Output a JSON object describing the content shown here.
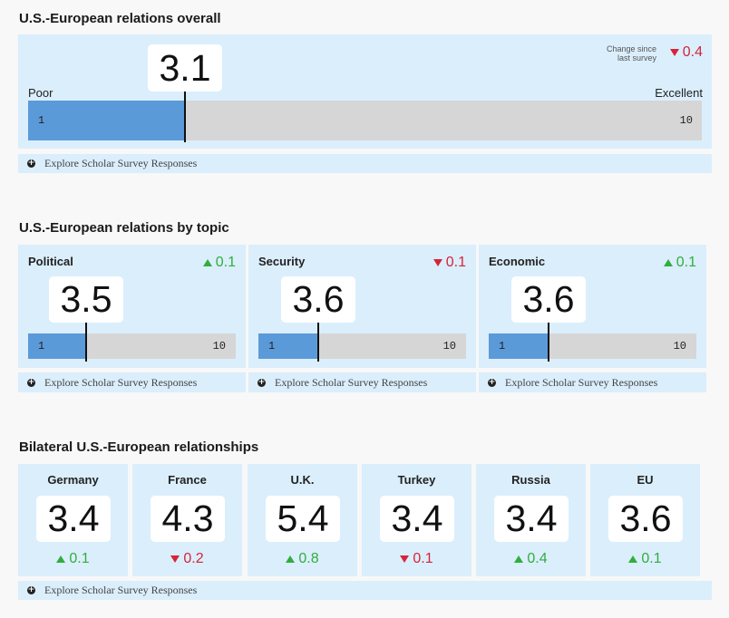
{
  "overall": {
    "title": "U.S.-European relations overall",
    "value": "3.1",
    "score": 3.1,
    "scale_min": 1,
    "scale_max": 10,
    "label_low": "Poor",
    "label_high": "Excellent",
    "min_text": "1",
    "max_text": "10",
    "change_caption_line1": "Change since",
    "change_caption_line2": "last survey",
    "change_value": "0.4",
    "change_dir": "down",
    "explore_label": "Explore Scholar Survey Responses"
  },
  "topics": {
    "title": "U.S.-European relations by topic",
    "items": [
      {
        "name": "Political",
        "value": "3.5",
        "score": 3.5,
        "change": "0.1",
        "dir": "up",
        "min_text": "1",
        "max_text": "10",
        "explore_label": "Explore Scholar Survey Responses"
      },
      {
        "name": "Security",
        "value": "3.6",
        "score": 3.6,
        "change": "0.1",
        "dir": "down",
        "min_text": "1",
        "max_text": "10",
        "explore_label": "Explore Scholar Survey Responses"
      },
      {
        "name": "Economic",
        "value": "3.6",
        "score": 3.6,
        "change": "0.1",
        "dir": "up",
        "min_text": "1",
        "max_text": "10",
        "explore_label": "Explore Scholar Survey Responses"
      }
    ]
  },
  "bilateral": {
    "title": "Bilateral U.S.-European relationships",
    "items": [
      {
        "name": "Germany",
        "value": "3.4",
        "change": "0.1",
        "dir": "up"
      },
      {
        "name": "France",
        "value": "4.3",
        "change": "0.2",
        "dir": "down"
      },
      {
        "name": "U.K.",
        "value": "5.4",
        "change": "0.8",
        "dir": "up"
      },
      {
        "name": "Turkey",
        "value": "3.4",
        "change": "0.1",
        "dir": "down"
      },
      {
        "name": "Russia",
        "value": "3.4",
        "change": "0.4",
        "dir": "up"
      },
      {
        "name": "EU",
        "value": "3.6",
        "change": "0.1",
        "dir": "up"
      }
    ],
    "explore_label": "Explore Scholar Survey Responses"
  },
  "colors": {
    "panel": "#dbeefc",
    "bar_fill": "#5b9ad9",
    "bar_track": "#d6d6d6",
    "up": "#2fae3c",
    "down": "#d4253a"
  }
}
